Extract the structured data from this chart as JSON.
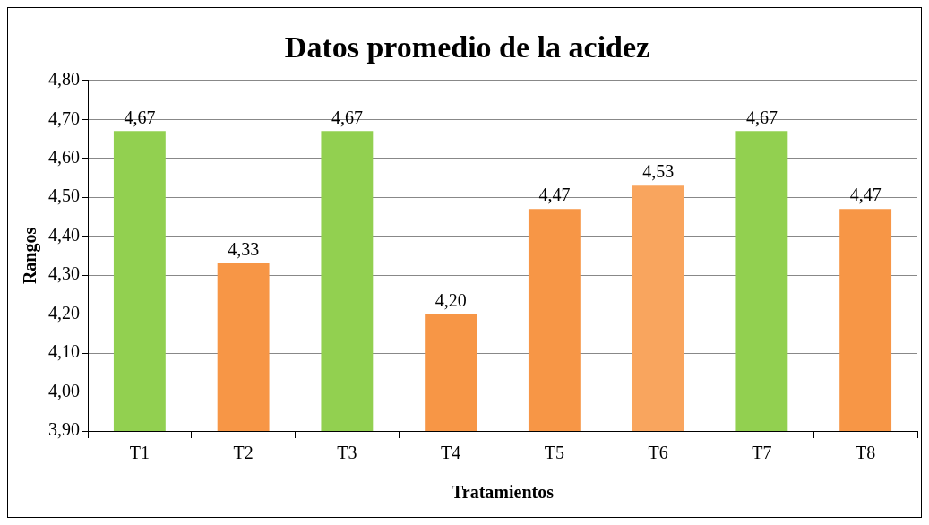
{
  "chart_data": {
    "type": "bar",
    "title": "Datos promedio de la acidez",
    "xlabel": "Tratamientos",
    "ylabel": "Rangos",
    "categories": [
      "T1",
      "T2",
      "T3",
      "T4",
      "T5",
      "T6",
      "T7",
      "T8"
    ],
    "values": [
      4.67,
      4.33,
      4.67,
      4.2,
      4.47,
      4.53,
      4.67,
      4.47
    ],
    "colors": [
      "#92d050",
      "#f79646",
      "#92d050",
      "#f79646",
      "#f79646",
      "#f9a55e",
      "#92d050",
      "#f79646"
    ],
    "value_labels": [
      "4,67",
      "4,33",
      "4,67",
      "4,20",
      "4,47",
      "4,53",
      "4,67",
      "4,47"
    ],
    "ylim": [
      3.9,
      4.8
    ],
    "yticks": [
      {
        "value": 3.9,
        "label": "3,90"
      },
      {
        "value": 4.0,
        "label": "4,00"
      },
      {
        "value": 4.1,
        "label": "4,10"
      },
      {
        "value": 4.2,
        "label": "4,20"
      },
      {
        "value": 4.3,
        "label": "4,30"
      },
      {
        "value": 4.4,
        "label": "4,40"
      },
      {
        "value": 4.5,
        "label": "4,50"
      },
      {
        "value": 4.6,
        "label": "4,60"
      },
      {
        "value": 4.7,
        "label": "4,70"
      },
      {
        "value": 4.8,
        "label": "4,80"
      }
    ],
    "grid": "y",
    "legend": false
  }
}
